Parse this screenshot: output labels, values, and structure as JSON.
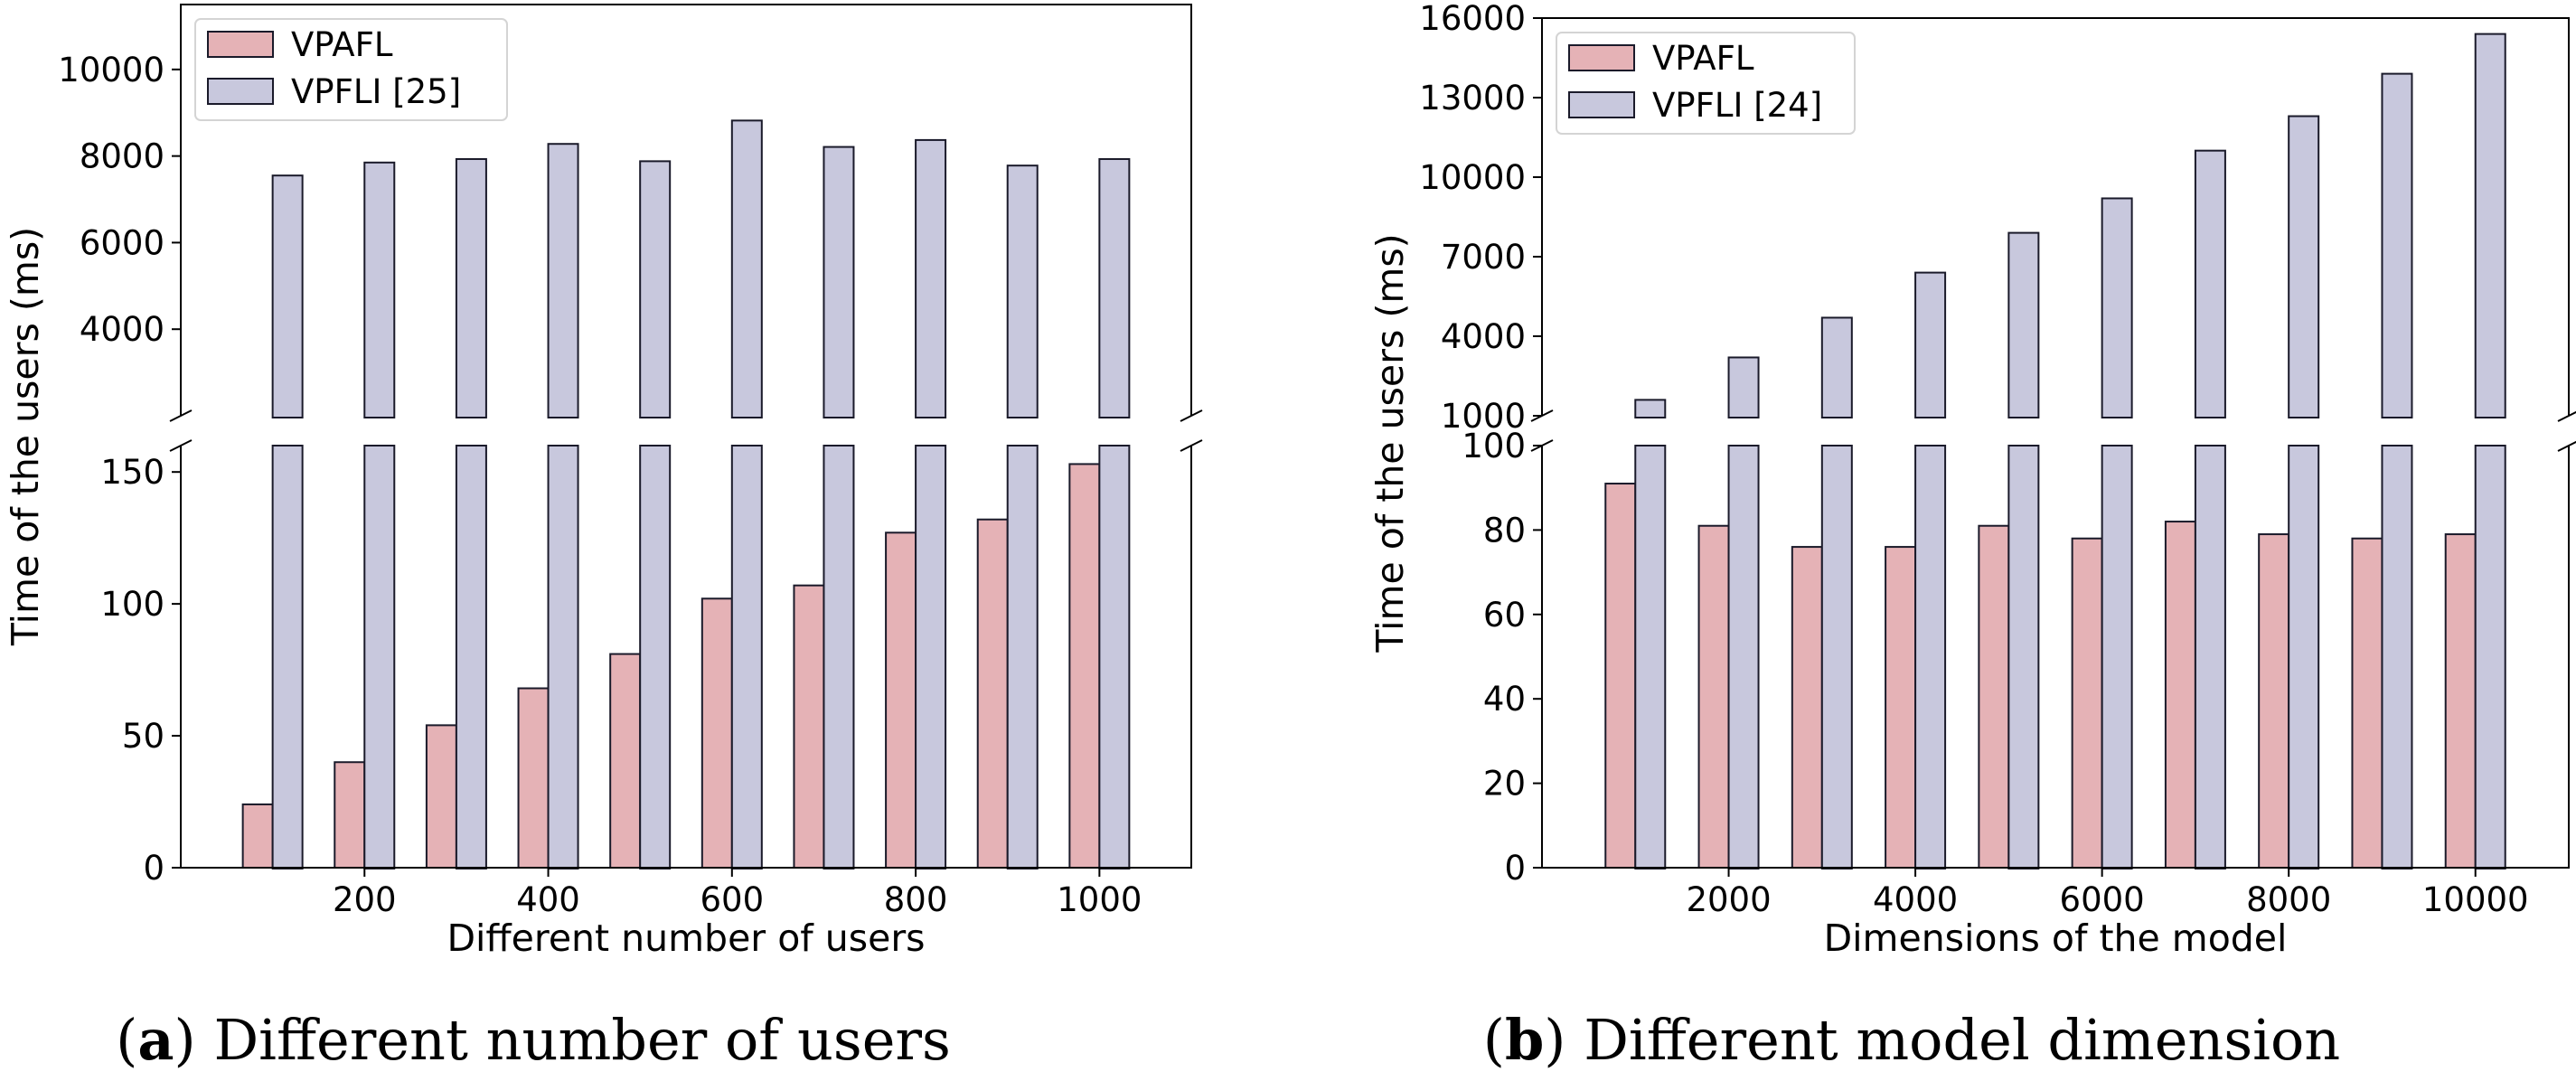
{
  "colors": {
    "vpafl": "#e5b2b6",
    "vpfli": "#c8c8dd",
    "edge": "#1a1a2a",
    "axis": "#000000"
  },
  "captions": {
    "a": {
      "open": "(",
      "letter": "a",
      "close": ")",
      "text": " Different number of users"
    },
    "b": {
      "open": "(",
      "letter": "b",
      "close": ")",
      "text": " Different model dimension"
    }
  },
  "chart_data": [
    {
      "id": "a",
      "type": "bar",
      "broken_axis": true,
      "x": [
        100,
        200,
        300,
        400,
        500,
        600,
        700,
        800,
        900,
        1000
      ],
      "xlabel": "Different number of users",
      "ylabel": "Time of the users (ms)",
      "xticks": [
        200,
        400,
        600,
        800,
        1000
      ],
      "xtick_labels": [
        "200",
        "400",
        "600",
        "800",
        "1000"
      ],
      "x_range": [
        0,
        1100
      ],
      "lower_ylim": [
        0,
        160
      ],
      "lower_yticks": [
        0,
        50,
        100,
        150
      ],
      "lower_ytick_labels": [
        "0",
        "50",
        "100",
        "150"
      ],
      "upper_ylim": [
        2000,
        11500
      ],
      "upper_yticks": [
        4000,
        6000,
        8000,
        10000
      ],
      "upper_ytick_labels": [
        "4000",
        "6000",
        "8000",
        "10000"
      ],
      "legend_position": "top-left",
      "series": [
        {
          "name": "VPAFL",
          "values": [
            24,
            40,
            54,
            68,
            81,
            102,
            107,
            127,
            132,
            153
          ]
        },
        {
          "name": "VPFLI [25]",
          "values": [
            7550,
            7850,
            7930,
            8280,
            7880,
            8820,
            8210,
            8370,
            7780,
            7930
          ]
        }
      ]
    },
    {
      "id": "b",
      "type": "bar",
      "broken_axis": true,
      "x": [
        1000,
        2000,
        3000,
        4000,
        5000,
        6000,
        7000,
        8000,
        9000,
        10000
      ],
      "xlabel": "Dimensions of the model",
      "ylabel": "Time of the users (ms)",
      "xticks": [
        2000,
        4000,
        6000,
        8000,
        10000
      ],
      "xtick_labels": [
        "2000",
        "4000",
        "6000",
        "8000",
        "10000"
      ],
      "x_range": [
        0,
        11000
      ],
      "lower_ylim": [
        0,
        100
      ],
      "lower_yticks": [
        0,
        20,
        40,
        60,
        80,
        100
      ],
      "lower_ytick_labels": [
        "0",
        "20",
        "40",
        "60",
        "80",
        "100"
      ],
      "upper_ylim": [
        1000,
        16000
      ],
      "upper_yticks": [
        1000,
        4000,
        7000,
        10000,
        13000,
        16000
      ],
      "upper_ytick_labels": [
        "1000",
        "4000",
        "7000",
        "10000",
        "13000",
        "16000"
      ],
      "legend_position": "top-left",
      "series": [
        {
          "name": "VPAFL",
          "values": [
            91,
            81,
            76,
            76,
            81,
            78,
            82,
            79,
            78,
            79
          ]
        },
        {
          "name": "VPFLI [24]",
          "values": [
            1600,
            3200,
            4700,
            6400,
            7900,
            9200,
            11000,
            12300,
            13900,
            15400
          ]
        }
      ]
    }
  ]
}
